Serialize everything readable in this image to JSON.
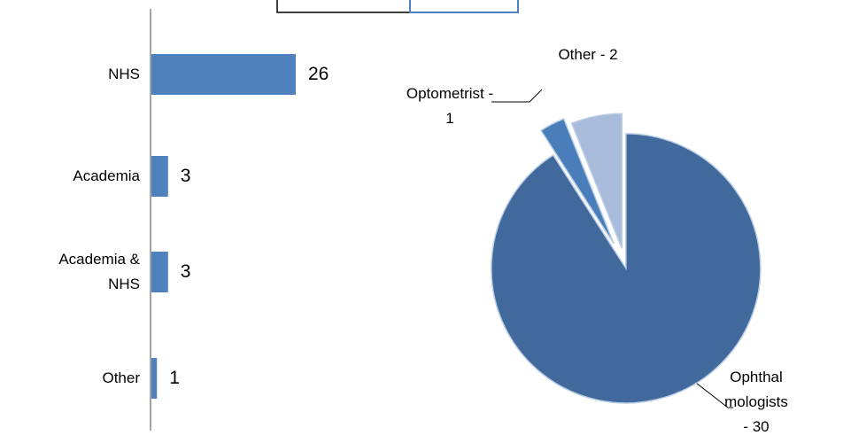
{
  "chart_data": [
    {
      "type": "hbar",
      "categories": [
        "NHS",
        "Academia",
        "Academia & NHS",
        "Other"
      ],
      "values": [
        26,
        3,
        3,
        1
      ],
      "color": "#4f81bd"
    },
    {
      "type": "pie",
      "labels": [
        "Ophthalmologists - 30",
        "Optometrist - 1",
        "Other - 2"
      ],
      "values": [
        30,
        1,
        2
      ],
      "colors": [
        "#41699c",
        "#4a7ebb",
        "#a9bbdb"
      ]
    }
  ]
}
